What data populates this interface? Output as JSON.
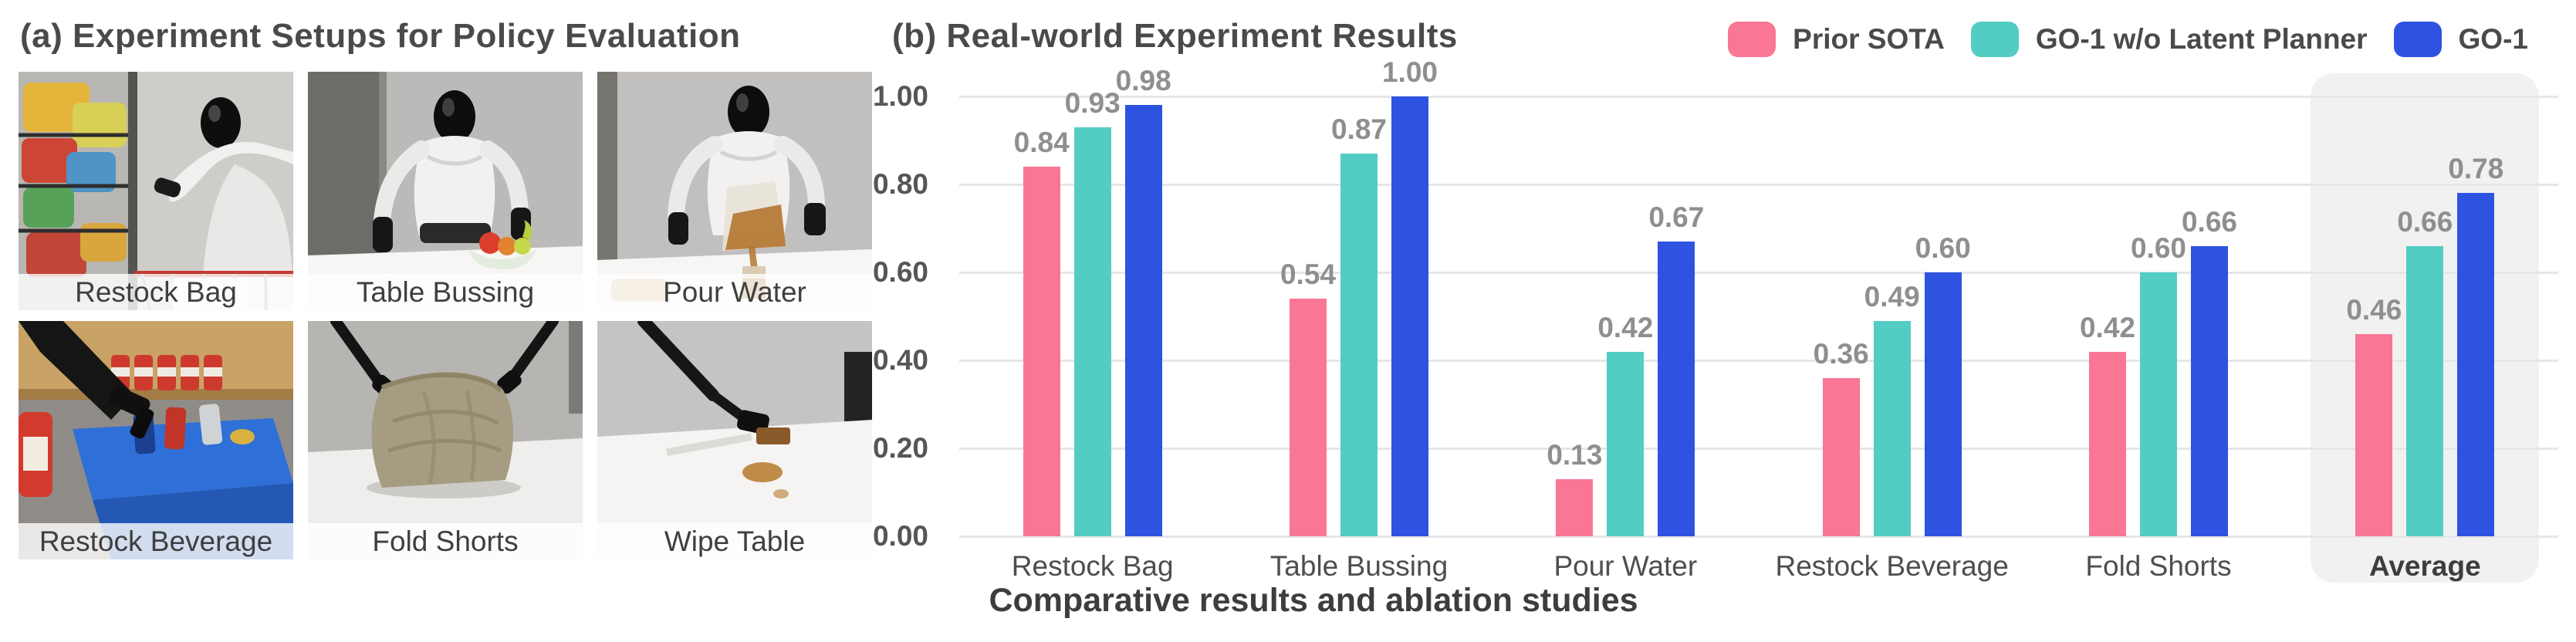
{
  "panel_a": {
    "title": "(a) Experiment Setups for Policy Evaluation",
    "photos": [
      {
        "label": "Restock Bag",
        "scene": "restock-bag"
      },
      {
        "label": "Table Bussing",
        "scene": "table-bussing"
      },
      {
        "label": "Pour Water",
        "scene": "pour-water"
      },
      {
        "label": "Restock Beverage",
        "scene": "restock-beverage"
      },
      {
        "label": "Fold Shorts",
        "scene": "fold-shorts"
      },
      {
        "label": "Wipe Table",
        "scene": "wipe-table"
      }
    ]
  },
  "panel_b": {
    "title": "(b) Real-world Experiment Results",
    "caption": "Comparative results and ablation studies",
    "highlighted_category": "Average",
    "legend": [
      {
        "label": "Prior SOTA",
        "color": "#F97694"
      },
      {
        "label": "GO-1 w/o Latent Planner",
        "color": "#53CDC3"
      },
      {
        "label": "GO-1",
        "color": "#2E53E1"
      }
    ]
  },
  "chart_data": {
    "type": "bar",
    "title": "(b) Real-world Experiment Results",
    "xlabel": "",
    "ylabel": "",
    "categories": [
      "Restock Bag",
      "Table Bussing",
      "Pour Water",
      "Restock Beverage",
      "Fold Shorts",
      "Average"
    ],
    "series": [
      {
        "name": "Prior SOTA",
        "color": "#F97694",
        "values": [
          0.84,
          0.54,
          0.13,
          0.36,
          0.42,
          0.46
        ]
      },
      {
        "name": "GO-1 w/o Latent Planner",
        "color": "#53CDC3",
        "values": [
          0.93,
          0.87,
          0.42,
          0.49,
          0.6,
          0.66
        ]
      },
      {
        "name": "GO-1",
        "color": "#2E53E1",
        "values": [
          0.98,
          1.0,
          0.67,
          0.6,
          0.66,
          0.78
        ]
      }
    ],
    "ylim": [
      0,
      1.0
    ],
    "yticks": [
      "0.00",
      "0.20",
      "0.40",
      "0.60",
      "0.80",
      "1.00"
    ],
    "grid": true,
    "value_labels": true,
    "legend_position": "top-right",
    "highlighted_category": "Average"
  }
}
